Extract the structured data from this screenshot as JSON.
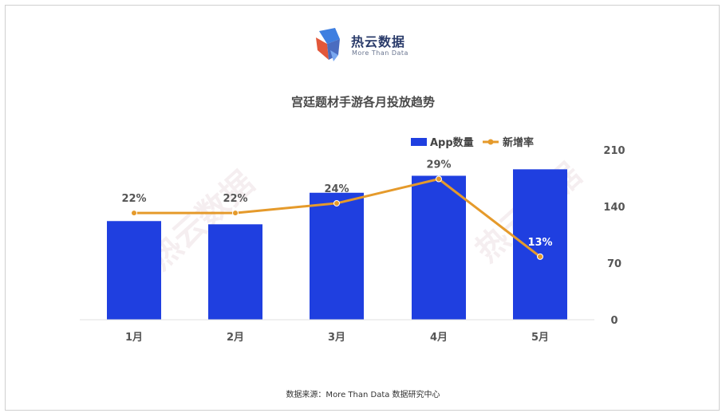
{
  "brand": {
    "name": "热云数据",
    "tagline": "More Than Data"
  },
  "chart_data": {
    "type": "bar",
    "title": "宫廷题材手游各月投放趋势",
    "categories": [
      "1月",
      "2月",
      "3月",
      "4月",
      "5月"
    ],
    "series": [
      {
        "name": "App数量",
        "type": "bar",
        "values": [
          122,
          118,
          157,
          178,
          186
        ],
        "color": "#1f3fe0"
      },
      {
        "name": "新增率",
        "type": "line",
        "values": [
          22,
          22,
          24,
          29,
          13
        ],
        "labels": [
          "22%",
          "22%",
          "24%",
          "29%",
          "13%"
        ],
        "color": "#e59a2b"
      }
    ],
    "y_ticks": [
      "210",
      "140",
      "70",
      "0"
    ],
    "ylim": [
      0,
      210
    ],
    "y2lim": [
      0,
      35
    ],
    "legend_position": "top-right",
    "grid": false
  },
  "footer": {
    "source": "数据来源：More Than Data 数据研究中心"
  },
  "watermark": {
    "text": "热云数据"
  },
  "icons": {
    "logo": "cube-logo-icon"
  }
}
